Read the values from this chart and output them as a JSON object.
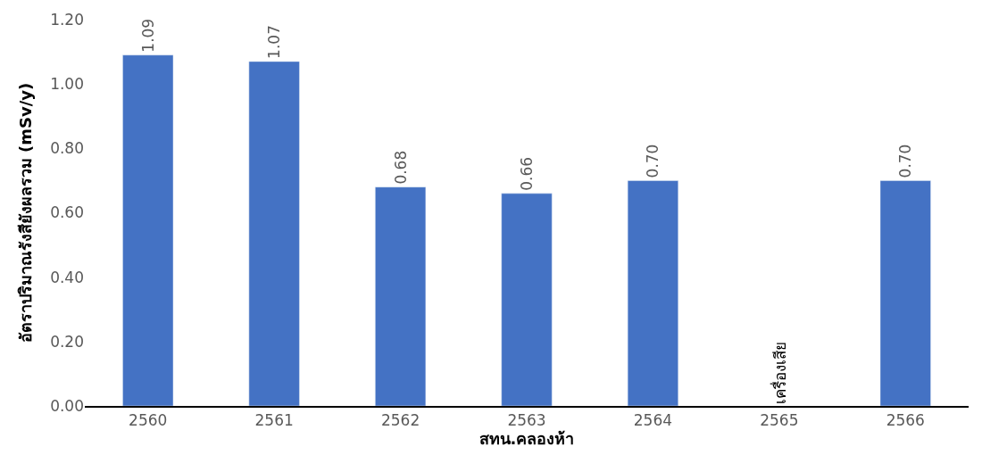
{
  "chart_data": {
    "type": "bar",
    "xlabel": "สทน.คลองห้า",
    "ylabel": "อัตราปริมาณรังสียังผลรวม (mSv/y)",
    "categories": [
      "2560",
      "2561",
      "2562",
      "2563",
      "2564",
      "2565",
      "2566"
    ],
    "values": [
      1.09,
      1.07,
      0.68,
      0.66,
      0.7,
      null,
      0.7
    ],
    "color": "#4472c4",
    "value_labels": [
      "1.09",
      "1.07",
      "0.68",
      "0.66",
      "0.70",
      null,
      "0.70"
    ],
    "annotations": [
      "เครื่องเสีย"
    ],
    "ylim": [
      0,
      1.2
    ],
    "yticks": [
      {
        "value": 0,
        "label": "0.00"
      },
      {
        "value": 0.2,
        "label": "0.20"
      },
      {
        "value": 0.4,
        "label": "0.40"
      },
      {
        "value": 0.6,
        "label": "0.60"
      },
      {
        "value": 0.8,
        "label": "0.80"
      },
      {
        "value": 1.0,
        "label": "1.00"
      },
      {
        "value": 1.2,
        "label": "1.20"
      }
    ]
  }
}
